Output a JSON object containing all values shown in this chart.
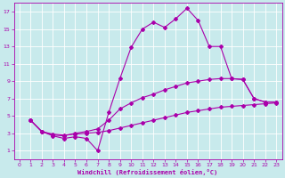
{
  "bg_color": "#c8eaec",
  "line_color": "#aa00aa",
  "grid_color": "#ffffff",
  "xlabel": "Windchill (Refroidissement éolien,°C)",
  "xlim": [
    -0.5,
    23.5
  ],
  "ylim": [
    0,
    18
  ],
  "xticks": [
    0,
    1,
    2,
    3,
    4,
    5,
    6,
    7,
    8,
    9,
    10,
    11,
    12,
    13,
    14,
    15,
    16,
    17,
    18,
    19,
    20,
    21,
    22,
    23
  ],
  "yticks": [
    1,
    3,
    5,
    7,
    9,
    11,
    13,
    15,
    17
  ],
  "curve1_x": [
    1,
    2,
    3,
    4,
    5,
    6,
    7,
    8,
    9,
    10,
    11,
    12,
    13,
    14,
    15,
    16,
    17,
    18,
    19,
    20,
    21,
    22,
    23
  ],
  "curve1_y": [
    4.5,
    3.2,
    2.7,
    2.4,
    2.6,
    2.4,
    1.0,
    5.4,
    9.3,
    12.9,
    15.0,
    15.8,
    15.2,
    16.2,
    17.4,
    16.0,
    13.0,
    13.0,
    9.3,
    9.2,
    7.0,
    6.6,
    6.6
  ],
  "curve2_x": [
    1,
    2,
    3,
    4,
    5,
    6,
    7,
    8,
    9,
    10,
    11,
    12,
    13,
    14,
    15,
    16,
    17,
    18,
    19,
    20,
    21,
    22,
    23
  ],
  "curve2_y": [
    4.5,
    3.2,
    2.8,
    2.7,
    3.0,
    3.2,
    3.5,
    4.5,
    5.8,
    6.5,
    7.1,
    7.5,
    8.0,
    8.4,
    8.8,
    9.0,
    9.2,
    9.3,
    9.3,
    9.2,
    7.0,
    6.6,
    6.6
  ],
  "curve3_x": [
    1,
    2,
    3,
    4,
    5,
    6,
    7,
    8,
    9,
    10,
    11,
    12,
    13,
    14,
    15,
    16,
    17,
    18,
    19,
    20,
    21,
    22,
    23
  ],
  "curve3_y": [
    4.5,
    3.2,
    2.9,
    2.8,
    2.9,
    3.0,
    3.1,
    3.3,
    3.6,
    3.9,
    4.2,
    4.5,
    4.8,
    5.1,
    5.4,
    5.6,
    5.8,
    6.0,
    6.1,
    6.2,
    6.3,
    6.4,
    6.5
  ]
}
